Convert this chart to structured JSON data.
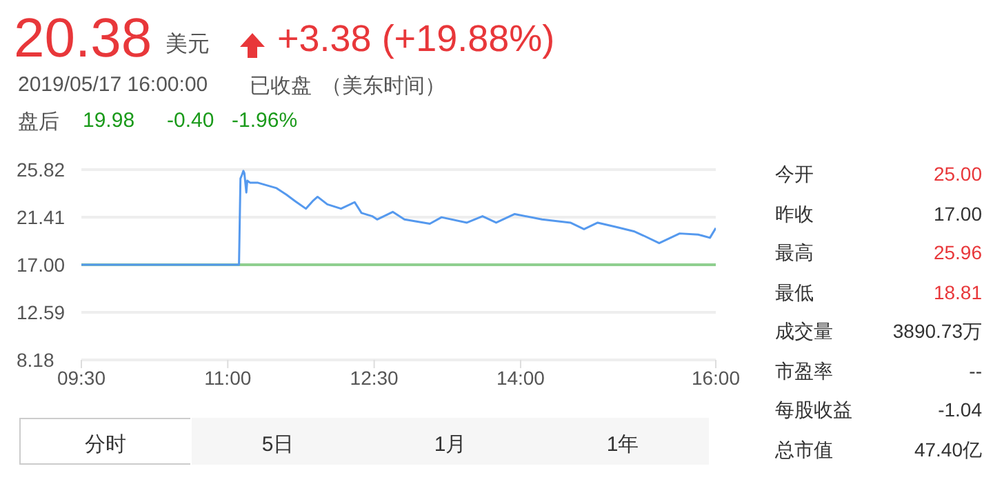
{
  "chart_data": {
    "type": "line",
    "title": "20.38",
    "annotations": [
      "美元",
      "+3.38 (+19.88%)",
      "2019/05/17 16:00:00",
      "已收盘",
      "（美东时间）",
      "盘后",
      "19.98",
      "-0.40",
      "-1.96%",
      "今开",
      "25.00",
      "昨收",
      "17.00",
      "最高",
      "25.96",
      "最低",
      "18.81",
      "成交量",
      "3890.73万",
      "市盈率",
      "--",
      "每股收益",
      "-1.04",
      "总市值",
      "47.40亿",
      "分时",
      "5日",
      "1月",
      "1年"
    ],
    "series": [
      {
        "color": "#5599ee",
        "x": [
          9.5,
          11.115,
          11.13,
          11.14,
          11.16,
          11.17,
          11.19,
          11.2,
          11.23,
          11.31,
          11.5,
          11.6,
          11.69,
          11.8,
          11.87,
          11.92,
          12.02,
          12.16,
          12.3,
          12.37,
          12.48,
          12.53,
          12.69,
          12.81,
          13.07,
          13.19,
          13.45,
          13.61,
          13.75,
          13.94,
          14.22,
          14.51,
          14.65,
          14.79,
          14.98,
          15.16,
          15.26,
          15.42,
          15.63,
          15.82,
          15.94,
          16.0
        ],
        "values": [
          17.0,
          17.0,
          25.0,
          25.2,
          25.7,
          25.5,
          23.7,
          24.8,
          24.6,
          24.6,
          24.1,
          23.5,
          22.9,
          22.2,
          22.9,
          23.3,
          22.6,
          22.2,
          22.8,
          21.8,
          21.5,
          21.2,
          21.9,
          21.2,
          20.8,
          21.4,
          20.9,
          21.5,
          20.9,
          21.7,
          21.2,
          20.9,
          20.3,
          20.9,
          20.5,
          20.1,
          19.7,
          19.0,
          19.9,
          19.8,
          19.5,
          20.4
        ]
      }
    ],
    "xlim": [
      9.5,
      16
    ],
    "xticks": [
      {
        "value": 9.5,
        "label": "09:30"
      },
      {
        "value": 11,
        "label": "11:00"
      },
      {
        "value": 12.5,
        "label": "12:30"
      },
      {
        "value": 14,
        "label": "14:00"
      },
      {
        "value": 16,
        "label": "16:00"
      }
    ],
    "ylim": [
      8.18,
      25.82
    ],
    "yticks": [
      8.18,
      12.59,
      {
        "value": 17,
        "label": "17.00"
      },
      21.41,
      25.82
    ],
    "grid": "y",
    "ref_lines": [
      {
        "axis": "y",
        "value": 17,
        "color": "#8fcf8f"
      }
    ]
  }
}
